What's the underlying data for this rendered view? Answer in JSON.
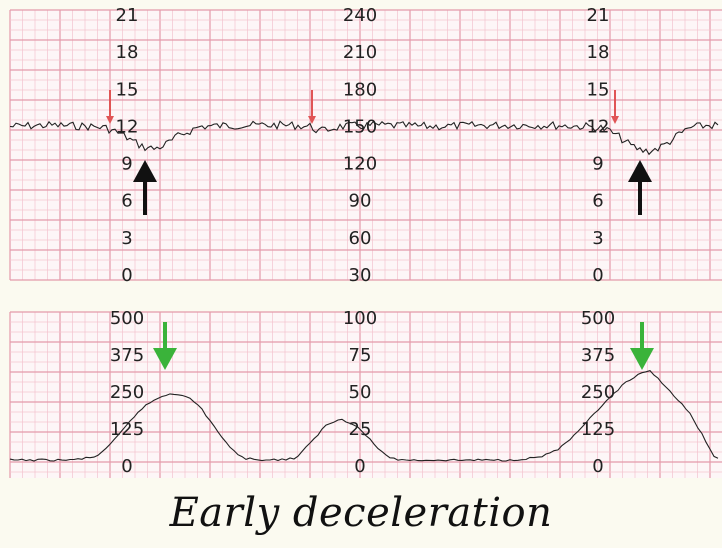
{
  "caption": "Early deceleration",
  "colors": {
    "grid_minor": "#f3c4cf",
    "grid_major": "#e49aaa",
    "paper": "#fdf6f7",
    "trace": "#222222",
    "red_arrow": "#e05555",
    "black_arrow": "#111111",
    "green_arrow": "#3ab33a"
  },
  "chart_data": [
    {
      "type": "line",
      "title": "",
      "left_axis_ticks": [
        "21",
        "18",
        "15",
        "12",
        "9",
        "6",
        "3",
        "0"
      ],
      "center_axis_ticks": [
        "240",
        "210",
        "180",
        "150",
        "120",
        "90",
        "60",
        "30"
      ],
      "right_axis_ticks": [
        "21",
        "18",
        "15",
        "12",
        "9",
        "6",
        "3",
        "0"
      ],
      "ylim": [
        30,
        240
      ],
      "series": [
        {
          "x": [
            0,
            40,
            80,
            95,
            105,
            115,
            125,
            135,
            145,
            155,
            170,
            190,
            230,
            280,
            300,
            310,
            330,
            370,
            420,
            480,
            540,
            575,
            590,
            600,
            610,
            620,
            630,
            640,
            650,
            660,
            670,
            680,
            700,
            722
          ],
          "values": [
            150,
            151,
            150,
            149,
            146,
            142,
            137,
            133,
            132,
            135,
            143,
            150,
            151,
            151,
            150,
            146,
            150,
            151,
            150,
            151,
            151,
            150,
            149,
            146,
            141,
            135,
            131,
            130,
            133,
            138,
            144,
            149,
            151,
            150
          ]
        }
      ],
      "annotations": {
        "red_arrows_x": [
          110,
          312,
          615
        ],
        "black_arrows_x": [
          145,
          640
        ]
      }
    },
    {
      "type": "line",
      "title": "",
      "left_axis_ticks": [
        "500",
        "375",
        "250",
        "125",
        "0"
      ],
      "center_axis_ticks": [
        "100",
        "75",
        "50",
        "25",
        "0"
      ],
      "right_axis_ticks": [
        "500",
        "375",
        "250",
        "125",
        "0"
      ],
      "ylim": [
        0,
        100
      ],
      "series": [
        {
          "x": [
            0,
            60,
            85,
            100,
            115,
            130,
            145,
            160,
            175,
            190,
            205,
            220,
            235,
            260,
            285,
            300,
            315,
            330,
            345,
            360,
            375,
            390,
            440,
            500,
            530,
            550,
            570,
            585,
            600,
            615,
            630,
            640,
            650,
            665,
            680,
            695,
            705,
            722
          ],
          "values": [
            4,
            4,
            6,
            14,
            26,
            38,
            45,
            49,
            48,
            40,
            26,
            12,
            5,
            4,
            5,
            15,
            27,
            32,
            28,
            18,
            7,
            4,
            4,
            4,
            6,
            12,
            24,
            36,
            46,
            56,
            62,
            64,
            58,
            47,
            35,
            18,
            5,
            4
          ]
        }
      ],
      "annotations": {
        "green_arrows_x": [
          165,
          642
        ]
      }
    }
  ]
}
